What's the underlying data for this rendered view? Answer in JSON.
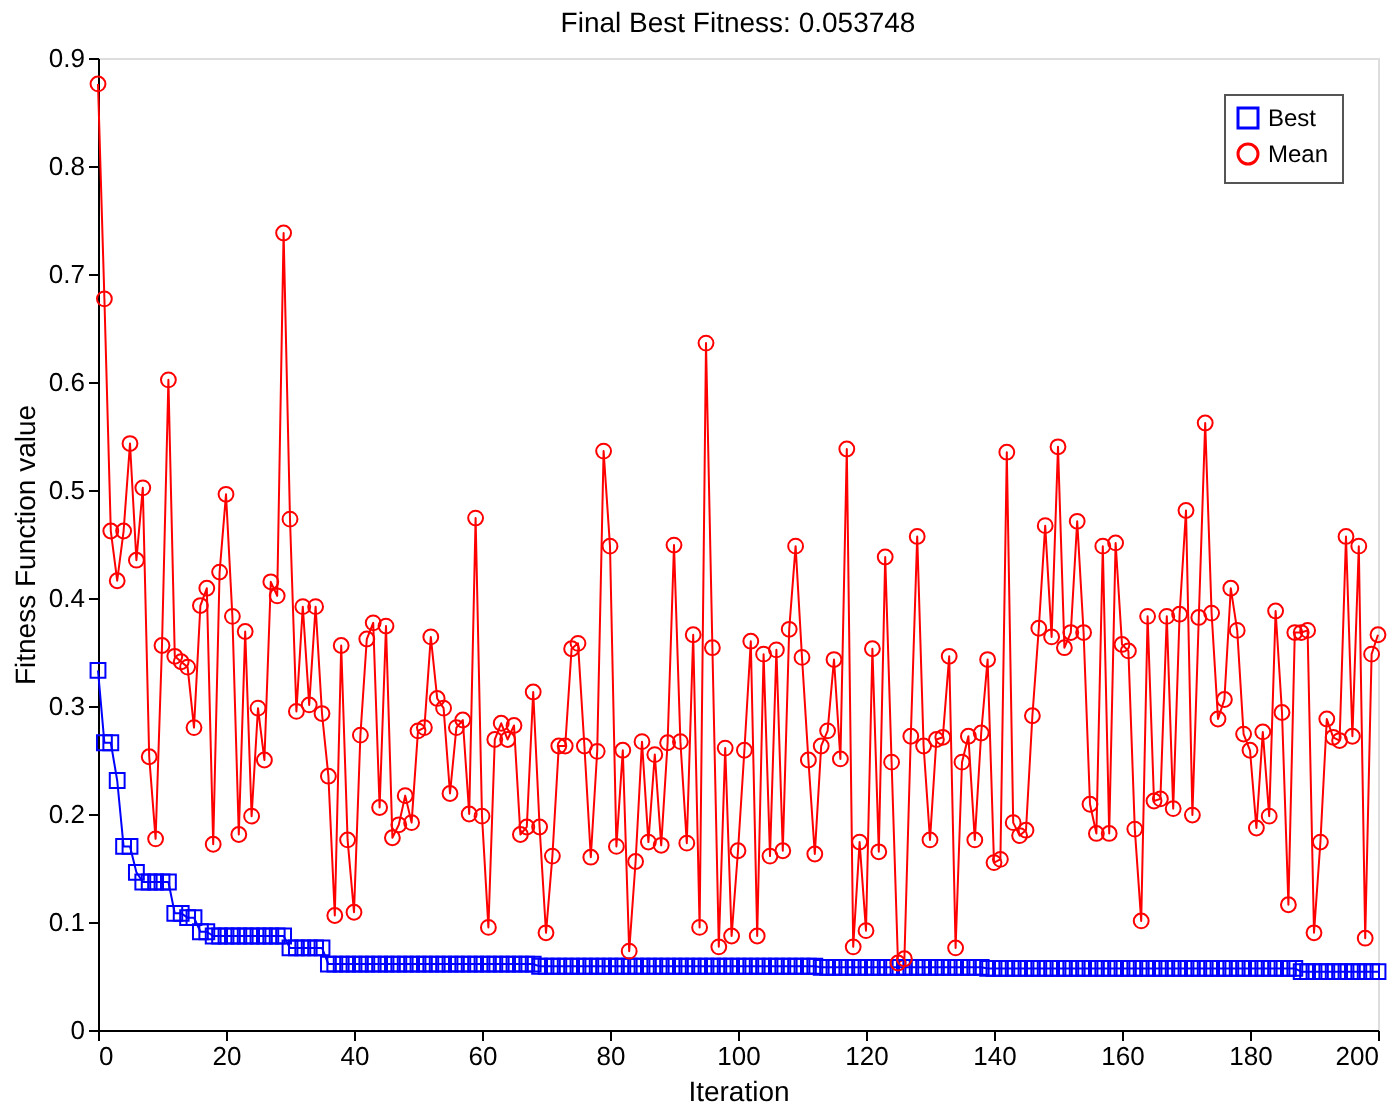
{
  "chart_data": {
    "type": "line",
    "title": "Final Best Fitness: 0.053748",
    "xlabel": "Iteration",
    "ylabel": "Fitness Function value",
    "x": [
      0,
      1,
      2,
      3,
      4,
      5,
      6,
      7,
      8,
      9,
      10,
      11,
      12,
      13,
      14,
      15,
      16,
      17,
      18,
      19,
      20,
      21,
      22,
      23,
      24,
      25,
      26,
      27,
      28,
      29,
      30,
      31,
      32,
      33,
      34,
      35,
      36,
      37,
      38,
      39,
      40,
      41,
      42,
      43,
      44,
      45,
      46,
      47,
      48,
      49,
      50,
      51,
      52,
      53,
      54,
      55,
      56,
      57,
      58,
      59,
      60,
      61,
      62,
      63,
      64,
      65,
      66,
      67,
      68,
      69,
      70,
      71,
      72,
      73,
      74,
      75,
      76,
      77,
      78,
      79,
      80,
      81,
      82,
      83,
      84,
      85,
      86,
      87,
      88,
      89,
      90,
      91,
      92,
      93,
      94,
      95,
      96,
      97,
      98,
      99,
      100,
      101,
      102,
      103,
      104,
      105,
      106,
      107,
      108,
      109,
      110,
      111,
      112,
      113,
      114,
      115,
      116,
      117,
      118,
      119,
      120,
      121,
      122,
      123,
      124,
      125,
      126,
      127,
      128,
      129,
      130,
      131,
      132,
      133,
      134,
      135,
      136,
      137,
      138,
      139,
      140,
      141,
      142,
      143,
      144,
      145,
      146,
      147,
      148,
      149,
      150,
      151,
      152,
      153,
      154,
      155,
      156,
      157,
      158,
      159,
      160,
      161,
      162,
      163,
      164,
      165,
      166,
      167,
      168,
      169,
      170,
      171,
      172,
      173,
      174,
      175,
      176,
      177,
      178,
      179,
      180,
      181,
      182,
      183,
      184,
      185,
      186,
      187,
      188,
      189,
      190,
      191,
      192,
      193,
      194,
      195,
      196,
      197,
      198,
      199,
      200
    ],
    "series": [
      {
        "name": "Best",
        "color": "#0000ff",
        "marker": "square",
        "values": [
          0.333,
          0.266,
          0.266,
          0.231,
          0.17,
          0.17,
          0.146,
          0.137,
          0.137,
          0.137,
          0.137,
          0.137,
          0.108,
          0.108,
          0.104,
          0.104,
          0.091,
          0.091,
          0.087,
          0.087,
          0.087,
          0.087,
          0.087,
          0.087,
          0.087,
          0.087,
          0.087,
          0.087,
          0.087,
          0.087,
          0.076,
          0.076,
          0.076,
          0.076,
          0.076,
          0.076,
          0.061,
          0.061,
          0.061,
          0.061,
          0.061,
          0.061,
          0.061,
          0.061,
          0.061,
          0.061,
          0.061,
          0.061,
          0.061,
          0.061,
          0.061,
          0.061,
          0.061,
          0.061,
          0.061,
          0.061,
          0.061,
          0.061,
          0.061,
          0.061,
          0.061,
          0.061,
          0.061,
          0.061,
          0.061,
          0.061,
          0.061,
          0.061,
          0.061,
          0.059,
          0.059,
          0.059,
          0.059,
          0.059,
          0.059,
          0.059,
          0.059,
          0.059,
          0.059,
          0.059,
          0.059,
          0.059,
          0.059,
          0.059,
          0.059,
          0.059,
          0.059,
          0.059,
          0.059,
          0.059,
          0.059,
          0.059,
          0.059,
          0.059,
          0.059,
          0.059,
          0.059,
          0.059,
          0.059,
          0.059,
          0.059,
          0.059,
          0.059,
          0.059,
          0.059,
          0.059,
          0.059,
          0.059,
          0.059,
          0.059,
          0.059,
          0.059,
          0.059,
          0.058,
          0.058,
          0.058,
          0.058,
          0.058,
          0.058,
          0.058,
          0.058,
          0.058,
          0.058,
          0.058,
          0.058,
          0.058,
          0.058,
          0.058,
          0.058,
          0.058,
          0.058,
          0.058,
          0.058,
          0.058,
          0.058,
          0.058,
          0.058,
          0.058,
          0.058,
          0.057,
          0.057,
          0.057,
          0.057,
          0.057,
          0.057,
          0.057,
          0.057,
          0.057,
          0.057,
          0.057,
          0.057,
          0.057,
          0.057,
          0.057,
          0.057,
          0.057,
          0.057,
          0.057,
          0.057,
          0.057,
          0.057,
          0.057,
          0.057,
          0.057,
          0.057,
          0.057,
          0.057,
          0.057,
          0.057,
          0.057,
          0.057,
          0.057,
          0.057,
          0.057,
          0.057,
          0.057,
          0.057,
          0.057,
          0.057,
          0.057,
          0.057,
          0.057,
          0.057,
          0.057,
          0.057,
          0.057,
          0.057,
          0.057,
          0.054,
          0.054,
          0.054,
          0.054,
          0.054,
          0.054,
          0.054,
          0.054,
          0.054,
          0.054,
          0.054,
          0.054,
          0.054
        ]
      },
      {
        "name": "Mean",
        "color": "#ff0000",
        "marker": "circle",
        "values": [
          0.876,
          0.677,
          0.462,
          0.416,
          0.462,
          0.543,
          0.435,
          0.502,
          0.253,
          0.177,
          0.356,
          0.602,
          0.346,
          0.341,
          0.336,
          0.28,
          0.393,
          0.409,
          0.172,
          0.424,
          0.496,
          0.383,
          0.181,
          0.369,
          0.198,
          0.298,
          0.25,
          0.415,
          0.402,
          0.738,
          0.473,
          0.295,
          0.392,
          0.301,
          0.392,
          0.293,
          0.235,
          0.106,
          0.356,
          0.176,
          0.109,
          0.273,
          0.362,
          0.377,
          0.206,
          0.374,
          0.178,
          0.19,
          0.217,
          0.192,
          0.277,
          0.28,
          0.364,
          0.307,
          0.298,
          0.219,
          0.28,
          0.287,
          0.2,
          0.474,
          0.198,
          0.095,
          0.269,
          0.284,
          0.269,
          0.282,
          0.181,
          0.188,
          0.313,
          0.188,
          0.09,
          0.161,
          0.263,
          0.263,
          0.353,
          0.358,
          0.263,
          0.16,
          0.258,
          0.536,
          0.448,
          0.17,
          0.259,
          0.073,
          0.156,
          0.267,
          0.174,
          0.255,
          0.171,
          0.266,
          0.449,
          0.267,
          0.173,
          0.366,
          0.095,
          0.636,
          0.354,
          0.077,
          0.261,
          0.087,
          0.166,
          0.259,
          0.36,
          0.087,
          0.348,
          0.161,
          0.352,
          0.166,
          0.371,
          0.448,
          0.345,
          0.25,
          0.163,
          0.263,
          0.277,
          0.343,
          0.251,
          0.538,
          0.077,
          0.174,
          0.092,
          0.353,
          0.165,
          0.438,
          0.248,
          0.062,
          0.066,
          0.272,
          0.457,
          0.263,
          0.176,
          0.269,
          0.271,
          0.346,
          0.076,
          0.248,
          0.272,
          0.176,
          0.275,
          0.343,
          0.155,
          0.158,
          0.535,
          0.192,
          0.18,
          0.185,
          0.291,
          0.372,
          0.467,
          0.364,
          0.54,
          0.354,
          0.368,
          0.471,
          0.368,
          0.209,
          0.182,
          0.448,
          0.182,
          0.451,
          0.357,
          0.351,
          0.186,
          0.101,
          0.383,
          0.212,
          0.214,
          0.383,
          0.205,
          0.385,
          0.481,
          0.199,
          0.382,
          0.562,
          0.386,
          0.288,
          0.306,
          0.409,
          0.37,
          0.274,
          0.259,
          0.187,
          0.276,
          0.198,
          0.388,
          0.294,
          0.116,
          0.368,
          0.368,
          0.37,
          0.09,
          0.174,
          0.288,
          0.271,
          0.268,
          0.457,
          0.272,
          0.448,
          0.085,
          0.348,
          0.366
        ]
      }
    ],
    "xlim": [
      0,
      200
    ],
    "xticks": [
      0,
      20,
      40,
      60,
      80,
      100,
      120,
      140,
      160,
      180,
      200
    ],
    "ylim": [
      0,
      0.9
    ],
    "yticks": [
      0,
      0.1,
      0.2,
      0.3,
      0.4,
      0.5,
      0.6,
      0.7,
      0.8,
      0.9
    ],
    "grid": false,
    "legend": "top right",
    "line_style": "solid"
  }
}
